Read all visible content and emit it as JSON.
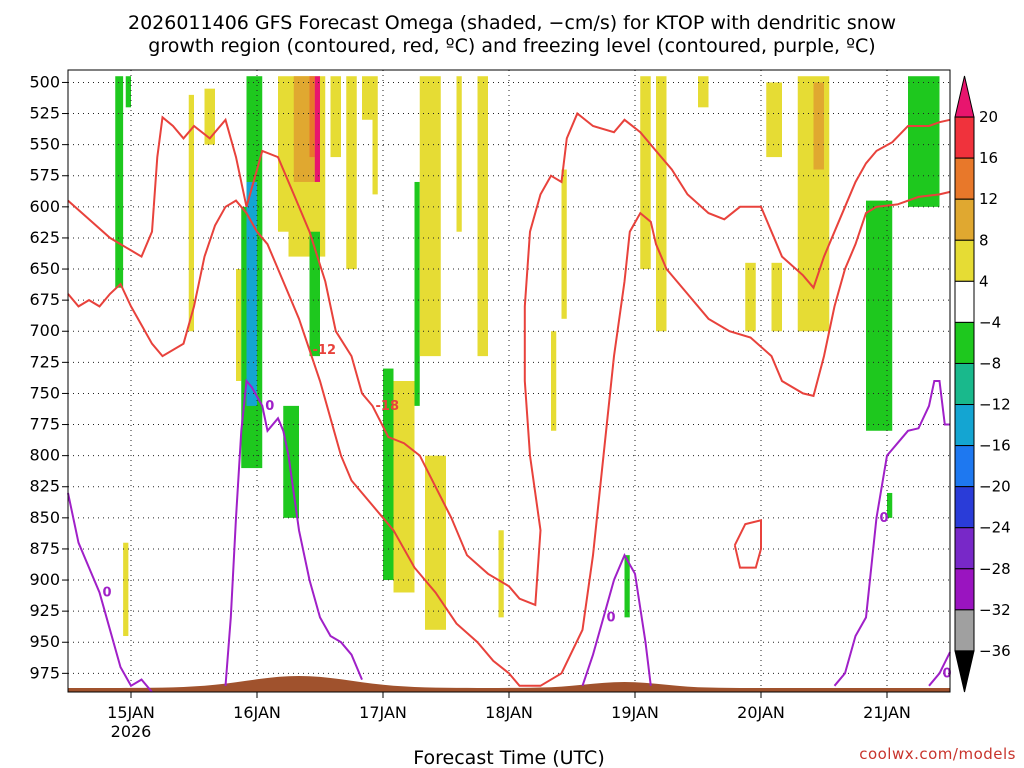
{
  "chart_data": {
    "type": "heatmap",
    "title_lines": [
      "2026011406 GFS Forecast Omega (shaded, −cm/s) for KTOP with dendritic snow",
      "growth region (contoured, red, ºC) and freezing level (contoured, purple, ºC)"
    ],
    "xlabel": "Forecast Time (UTC)",
    "ylabel": "",
    "y_scale": "pressure (inverted)",
    "ylim": [
      990,
      490
    ],
    "y_ticks": [
      500,
      525,
      550,
      575,
      600,
      625,
      650,
      675,
      700,
      725,
      750,
      775,
      800,
      825,
      850,
      875,
      900,
      925,
      950,
      975
    ],
    "x_range_hours": [
      6,
      174
    ],
    "x_ticks": [
      {
        "hour": 18,
        "label": "15JAN",
        "sublabel": "2026"
      },
      {
        "hour": 42,
        "label": "16JAN",
        "sublabel": ""
      },
      {
        "hour": 66,
        "label": "17JAN",
        "sublabel": ""
      },
      {
        "hour": 90,
        "label": "18JAN",
        "sublabel": ""
      },
      {
        "hour": 114,
        "label": "19JAN",
        "sublabel": ""
      },
      {
        "hour": 138,
        "label": "20JAN",
        "sublabel": ""
      },
      {
        "hour": 162,
        "label": "21JAN",
        "sublabel": ""
      }
    ],
    "grid": "dotted",
    "colorbar": {
      "levels": [
        20,
        16,
        12,
        8,
        4,
        -4,
        -8,
        -12,
        -16,
        -20,
        -24,
        -28,
        -32,
        -36
      ],
      "colors": [
        "#e8156e",
        "#f0323c",
        "#e8782a",
        "#e0a830",
        "#e6dc34",
        "#ffffff",
        "#1ec81e",
        "#19b98c",
        "#14a5d2",
        "#1e78f0",
        "#2a3cd8",
        "#7828c8",
        "#9a14c0",
        "#a0a0a0",
        "#000000"
      ]
    },
    "shaded_regions": [
      {
        "t0": 15,
        "t1": 16.5,
        "p_top": 495,
        "p_bot": 665,
        "value": -6
      },
      {
        "t0": 17,
        "t1": 18,
        "p_top": 495,
        "p_bot": 520,
        "value": -6
      },
      {
        "t0": 16.5,
        "t1": 17.5,
        "p_top": 870,
        "p_bot": 945,
        "value": 5
      },
      {
        "t0": 29,
        "t1": 30,
        "p_top": 510,
        "p_bot": 700,
        "value": 5
      },
      {
        "t0": 32,
        "t1": 34,
        "p_top": 505,
        "p_bot": 550,
        "value": 5
      },
      {
        "t0": 38,
        "t1": 39,
        "p_top": 650,
        "p_bot": 740,
        "value": 5
      },
      {
        "t0": 39,
        "t1": 43,
        "p_top": 600,
        "p_bot": 810,
        "value": -6
      },
      {
        "t0": 40,
        "t1": 43,
        "p_top": 495,
        "p_bot": 700,
        "value": -6
      },
      {
        "t0": 40,
        "t1": 42,
        "p_top": 580,
        "p_bot": 760,
        "value": -14
      },
      {
        "t0": 46,
        "t1": 48,
        "p_top": 495,
        "p_bot": 620,
        "value": 5
      },
      {
        "t0": 48,
        "t1": 55,
        "p_top": 495,
        "p_bot": 640,
        "value": 5
      },
      {
        "t0": 49,
        "t1": 53,
        "p_top": 495,
        "p_bot": 580,
        "value": 10
      },
      {
        "t0": 52,
        "t1": 53,
        "p_top": 495,
        "p_bot": 560,
        "value": 14
      },
      {
        "t0": 53,
        "t1": 54,
        "p_top": 495,
        "p_bot": 580,
        "value": 20
      },
      {
        "t0": 47,
        "t1": 50,
        "p_top": 760,
        "p_bot": 850,
        "value": -6
      },
      {
        "t0": 52,
        "t1": 54,
        "p_top": 620,
        "p_bot": 720,
        "value": -6
      },
      {
        "t0": 56,
        "t1": 58,
        "p_top": 495,
        "p_bot": 560,
        "value": 5
      },
      {
        "t0": 59,
        "t1": 61,
        "p_top": 495,
        "p_bot": 650,
        "value": 5
      },
      {
        "t0": 62,
        "t1": 64,
        "p_top": 495,
        "p_bot": 530,
        "value": 5
      },
      {
        "t0": 64,
        "t1": 65,
        "p_top": 495,
        "p_bot": 590,
        "value": 5
      },
      {
        "t0": 66,
        "t1": 68,
        "p_top": 730,
        "p_bot": 900,
        "value": -6
      },
      {
        "t0": 68,
        "t1": 72,
        "p_top": 740,
        "p_bot": 910,
        "value": 5
      },
      {
        "t0": 74,
        "t1": 78,
        "p_top": 800,
        "p_bot": 940,
        "value": 5
      },
      {
        "t0": 72,
        "t1": 73,
        "p_top": 580,
        "p_bot": 760,
        "value": -6
      },
      {
        "t0": 73,
        "t1": 77,
        "p_top": 495,
        "p_bot": 720,
        "value": 5
      },
      {
        "t0": 80,
        "t1": 81,
        "p_top": 495,
        "p_bot": 620,
        "value": 5
      },
      {
        "t0": 84,
        "t1": 86,
        "p_top": 495,
        "p_bot": 720,
        "value": 5
      },
      {
        "t0": 88,
        "t1": 89,
        "p_top": 860,
        "p_bot": 930,
        "value": 5
      },
      {
        "t0": 98,
        "t1": 99,
        "p_top": 700,
        "p_bot": 780,
        "value": 5
      },
      {
        "t0": 100,
        "t1": 101,
        "p_top": 570,
        "p_bot": 690,
        "value": 5
      },
      {
        "t0": 112,
        "t1": 113,
        "p_top": 880,
        "p_bot": 930,
        "value": -6
      },
      {
        "t0": 118,
        "t1": 120,
        "p_top": 495,
        "p_bot": 700,
        "value": 5
      },
      {
        "t0": 115,
        "t1": 117,
        "p_top": 495,
        "p_bot": 650,
        "value": 5
      },
      {
        "t0": 126,
        "t1": 128,
        "p_top": 495,
        "p_bot": 520,
        "value": 5
      },
      {
        "t0": 135,
        "t1": 137,
        "p_top": 645,
        "p_bot": 700,
        "value": 5
      },
      {
        "t0": 139,
        "t1": 142,
        "p_top": 500,
        "p_bot": 560,
        "value": 5
      },
      {
        "t0": 140,
        "t1": 142,
        "p_top": 645,
        "p_bot": 700,
        "value": 5
      },
      {
        "t0": 145,
        "t1": 151,
        "p_top": 495,
        "p_bot": 700,
        "value": 5
      },
      {
        "t0": 148,
        "t1": 150,
        "p_top": 500,
        "p_bot": 570,
        "value": 10
      },
      {
        "t0": 158,
        "t1": 163,
        "p_top": 595,
        "p_bot": 780,
        "value": -6
      },
      {
        "t0": 166,
        "t1": 172,
        "p_top": 495,
        "p_bot": 600,
        "value": -6
      },
      {
        "t0": 162,
        "t1": 163,
        "p_top": 830,
        "p_bot": 850,
        "value": -6
      }
    ],
    "contours": [
      {
        "label": "-18",
        "color": "#e8423c",
        "value": -18,
        "points": [
          [
            6,
            595
          ],
          [
            10,
            610
          ],
          [
            14,
            625
          ],
          [
            18,
            635
          ],
          [
            20,
            640
          ],
          [
            22,
            620
          ],
          [
            23,
            560
          ],
          [
            24,
            528
          ],
          [
            26,
            535
          ],
          [
            28,
            545
          ],
          [
            30,
            535
          ],
          [
            33,
            545
          ],
          [
            36,
            530
          ],
          [
            38,
            560
          ],
          [
            40,
            600
          ],
          [
            43,
            555
          ],
          [
            46,
            560
          ],
          [
            49,
            590
          ],
          [
            52,
            620
          ],
          [
            55,
            660
          ],
          [
            57,
            700
          ],
          [
            60,
            720
          ],
          [
            62,
            750
          ],
          [
            64,
            760
          ],
          [
            67,
            785
          ],
          [
            70,
            790
          ],
          [
            73,
            800
          ],
          [
            76,
            825
          ],
          [
            79,
            850
          ],
          [
            82,
            880
          ],
          [
            86,
            895
          ],
          [
            90,
            905
          ],
          [
            92,
            915
          ],
          [
            95,
            920
          ],
          [
            96,
            860
          ],
          [
            94,
            800
          ],
          [
            93,
            740
          ],
          [
            93,
            680
          ],
          [
            94,
            620
          ],
          [
            96,
            590
          ],
          [
            98,
            575
          ],
          [
            100,
            580
          ],
          [
            101,
            545
          ],
          [
            103,
            525
          ],
          [
            106,
            535
          ],
          [
            110,
            540
          ],
          [
            112,
            530
          ],
          [
            115,
            540
          ],
          [
            118,
            555
          ],
          [
            121,
            570
          ],
          [
            124,
            590
          ],
          [
            128,
            605
          ],
          [
            131,
            610
          ],
          [
            134,
            600
          ],
          [
            138,
            600
          ],
          [
            140,
            620
          ],
          [
            142,
            640
          ],
          [
            146,
            655
          ],
          [
            148,
            665
          ],
          [
            150,
            640
          ],
          [
            152,
            620
          ],
          [
            154,
            600
          ],
          [
            156,
            580
          ],
          [
            158,
            565
          ],
          [
            160,
            555
          ],
          [
            163,
            548
          ],
          [
            166,
            535
          ],
          [
            170,
            535
          ],
          [
            172,
            532
          ],
          [
            174,
            530
          ]
        ]
      },
      {
        "label": "-12",
        "color": "#e8423c",
        "value": -12,
        "points": [
          [
            6,
            670
          ],
          [
            8,
            680
          ],
          [
            10,
            675
          ],
          [
            12,
            680
          ],
          [
            14,
            670
          ],
          [
            16,
            662
          ],
          [
            18,
            680
          ],
          [
            20,
            695
          ],
          [
            22,
            710
          ],
          [
            24,
            720
          ],
          [
            28,
            710
          ],
          [
            30,
            680
          ],
          [
            32,
            640
          ],
          [
            34,
            615
          ],
          [
            36,
            600
          ],
          [
            38,
            595
          ],
          [
            40,
            605
          ],
          [
            42,
            620
          ],
          [
            44,
            630
          ],
          [
            46,
            650
          ],
          [
            48,
            670
          ],
          [
            50,
            690
          ],
          [
            52,
            715
          ],
          [
            54,
            740
          ],
          [
            56,
            770
          ],
          [
            58,
            800
          ],
          [
            60,
            820
          ],
          [
            64,
            840
          ],
          [
            68,
            860
          ],
          [
            72,
            890
          ],
          [
            76,
            910
          ],
          [
            80,
            935
          ],
          [
            84,
            950
          ],
          [
            87,
            965
          ],
          [
            90,
            975
          ],
          [
            92,
            985
          ],
          [
            96,
            985
          ],
          [
            100,
            975
          ],
          [
            104,
            940
          ],
          [
            106,
            880
          ],
          [
            108,
            800
          ],
          [
            110,
            720
          ],
          [
            112,
            660
          ],
          [
            113,
            620
          ],
          [
            115,
            605
          ],
          [
            117,
            612
          ],
          [
            118,
            630
          ],
          [
            120,
            650
          ],
          [
            124,
            670
          ],
          [
            128,
            690
          ],
          [
            132,
            700
          ],
          [
            136,
            705
          ],
          [
            140,
            720
          ],
          [
            142,
            740
          ],
          [
            146,
            750
          ],
          [
            148,
            752
          ],
          [
            150,
            720
          ],
          [
            152,
            680
          ],
          [
            154,
            650
          ],
          [
            156,
            630
          ],
          [
            158,
            605
          ],
          [
            160,
            600
          ],
          [
            164,
            598
          ],
          [
            168,
            592
          ],
          [
            172,
            590
          ],
          [
            174,
            588
          ]
        ]
      },
      {
        "label": "0",
        "color": "#a020c8",
        "value": 0,
        "points": [
          [
            6,
            830
          ],
          [
            8,
            870
          ],
          [
            10,
            890
          ],
          [
            12,
            910
          ],
          [
            14,
            940
          ],
          [
            16,
            970
          ],
          [
            18,
            985
          ],
          [
            20,
            980
          ],
          [
            22,
            990
          ]
        ]
      },
      {
        "label": "0",
        "color": "#a020c8",
        "value": 0,
        "points": [
          [
            36,
            985
          ],
          [
            37,
            930
          ],
          [
            38,
            850
          ],
          [
            39,
            780
          ],
          [
            40,
            740
          ],
          [
            41,
            745
          ],
          [
            43,
            760
          ],
          [
            44,
            780
          ],
          [
            46,
            770
          ],
          [
            47,
            780
          ],
          [
            48,
            800
          ],
          [
            50,
            860
          ],
          [
            52,
            900
          ],
          [
            54,
            930
          ],
          [
            56,
            945
          ],
          [
            58,
            950
          ],
          [
            60,
            960
          ],
          [
            62,
            980
          ]
        ]
      },
      {
        "label": "0",
        "color": "#a020c8",
        "value": 0,
        "points": [
          [
            104,
            985
          ],
          [
            106,
            960
          ],
          [
            108,
            930
          ],
          [
            110,
            900
          ],
          [
            112,
            880
          ],
          [
            114,
            895
          ],
          [
            116,
            950
          ],
          [
            117,
            985
          ]
        ]
      },
      {
        "label": "0",
        "color": "#a020c8",
        "value": 0,
        "points": [
          [
            152,
            985
          ],
          [
            154,
            975
          ],
          [
            156,
            945
          ],
          [
            158,
            930
          ],
          [
            160,
            850
          ],
          [
            162,
            800
          ],
          [
            164,
            790
          ],
          [
            166,
            780
          ],
          [
            168,
            778
          ],
          [
            170,
            760
          ],
          [
            171,
            740
          ],
          [
            172,
            740
          ],
          [
            173,
            775
          ],
          [
            174,
            775
          ]
        ]
      },
      {
        "label": "0",
        "color": "#a020c8",
        "value": 0,
        "points": [
          [
            170,
            985
          ],
          [
            172,
            975
          ],
          [
            174,
            958
          ]
        ]
      },
      {
        "label": "",
        "color": "#e8423c",
        "value": -12,
        "points": [
          [
            133,
            872
          ],
          [
            134,
            890
          ],
          [
            137,
            890
          ],
          [
            138,
            875
          ],
          [
            138,
            852
          ],
          [
            135,
            855
          ],
          [
            133,
            872
          ]
        ]
      }
    ],
    "terrain": {
      "color": "#a0522d",
      "label": "surface"
    }
  },
  "credit": "coolwx.com/models"
}
